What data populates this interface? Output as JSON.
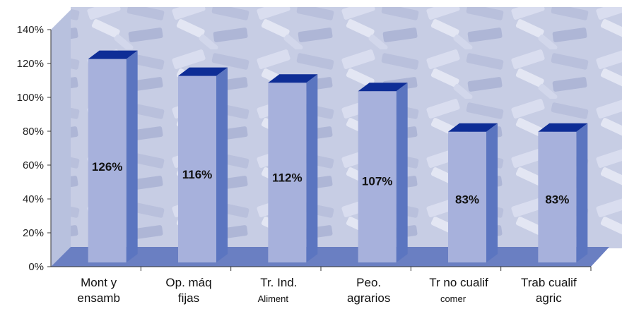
{
  "chart_data": {
    "type": "bar",
    "title": "",
    "xlabel": "",
    "ylabel": "",
    "ylim": [
      0,
      140
    ],
    "y_ticks": [
      "0%",
      "20%",
      "40%",
      "60%",
      "80%",
      "100%",
      "120%",
      "140%"
    ],
    "categories": [
      {
        "line1": "Mont y",
        "line2": "ensamb"
      },
      {
        "line1": "Op. máq",
        "line2": "fijas"
      },
      {
        "line1": "Tr. Ind.",
        "line2": "Aliment"
      },
      {
        "line1": "Peo.",
        "line2": "agrarios"
      },
      {
        "line1": "Tr no cualif",
        "line2": "comer"
      },
      {
        "line1": "Trab cualif",
        "line2": "agric"
      }
    ],
    "values": [
      126,
      116,
      112,
      107,
      83,
      83
    ],
    "data_labels": [
      "126%",
      "116%",
      "112%",
      "107%",
      "83%",
      "83%"
    ],
    "grid": false,
    "legend": "none",
    "colors": {
      "bar_front": "#a7b1dc",
      "bar_side": "#5b75c0",
      "bar_top": "#0e2d96",
      "floor": "#6a7fc2",
      "wall": "#b8c1de",
      "background": "#c7cde4"
    }
  }
}
